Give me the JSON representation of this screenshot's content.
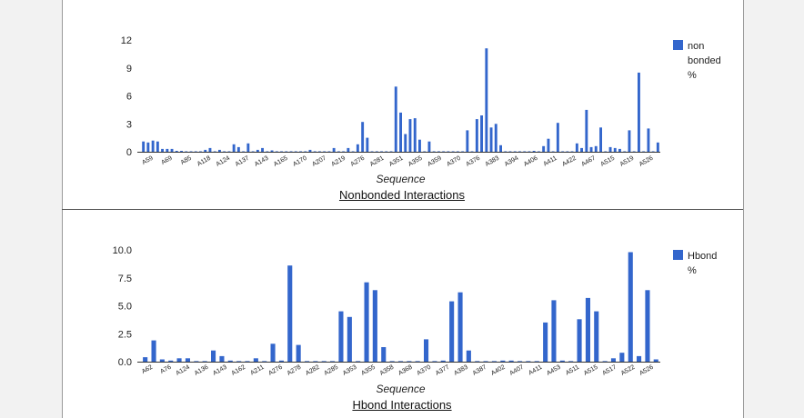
{
  "accent_color": "#3366cc",
  "charts": {
    "nonbonded": {
      "caption": "Nonbonded Interactions"
    },
    "hbond": {
      "caption": "Hbond Interactions"
    }
  },
  "chart_data": [
    {
      "type": "bar",
      "title": "Nonbonded Interactions",
      "xlabel": "Sequence",
      "ylabel": "",
      "ylim": [
        0,
        12
      ],
      "yticks": [
        "0",
        "3",
        "6",
        "9",
        "12"
      ],
      "ytick_values": [
        0,
        3,
        6,
        9,
        12
      ],
      "grid": false,
      "legend": {
        "label": [
          "non",
          "bonded",
          "%"
        ],
        "placement": "right"
      },
      "tick_labels": [
        "A59",
        "A69",
        "A85",
        "A118",
        "A124",
        "A137",
        "A143",
        "A165",
        "A170",
        "A207",
        "A219",
        "A276",
        "A281",
        "A351",
        "A355",
        "A359",
        "A370",
        "A376",
        "A383",
        "A394",
        "A406",
        "A411",
        "A422",
        "A467",
        "A515",
        "A519",
        "A526"
      ],
      "series": [
        {
          "values": [
            1.1,
            1.0,
            1.2,
            1.1,
            0.3,
            0.3,
            0.3,
            0.1,
            0.1,
            0.05,
            0.05,
            0.05,
            0.05,
            0.2,
            0.4,
            0.05,
            0.2,
            0.05,
            0.05,
            0.8,
            0.5,
            0.05,
            0.9,
            0.05,
            0.2,
            0.4,
            0.05,
            0.15,
            0.05,
            0.05,
            0.05,
            0.05,
            0.05,
            0.05,
            0.05,
            0.2,
            0.05,
            0.05,
            0.05,
            0.05,
            0.4,
            0.05,
            0.05,
            0.4,
            0.05,
            0.8,
            3.2,
            1.5,
            0.05,
            0.05,
            0.05,
            0.05,
            0.05,
            7.0,
            4.2,
            1.9,
            3.5,
            3.6,
            1.3,
            0.05,
            1.1,
            0.05,
            0.05,
            0.05,
            0.05,
            0.05,
            0.05,
            0.05,
            2.3,
            0.05,
            3.5,
            3.9,
            11.1,
            2.6,
            3.0,
            0.7,
            0.05,
            0.05,
            0.05,
            0.05,
            0.05,
            0.05,
            0.1,
            0.05,
            0.6,
            1.4,
            0.05,
            3.1,
            0.05,
            0.05,
            0.05,
            0.9,
            0.4,
            4.5,
            0.5,
            0.6,
            2.6,
            0.05,
            0.5,
            0.4,
            0.3,
            0.05,
            2.3,
            0.05,
            8.5,
            0.05,
            2.5,
            0.05,
            1.0
          ]
        }
      ]
    },
    {
      "type": "bar",
      "title": "Hbond Interactions",
      "xlabel": "Sequence",
      "ylabel": "",
      "ylim": [
        0,
        10
      ],
      "yticks": [
        "0.0",
        "2.5",
        "5.0",
        "7.5",
        "10.0"
      ],
      "ytick_values": [
        0,
        2.5,
        5,
        7.5,
        10
      ],
      "grid": false,
      "legend": {
        "label": [
          "Hbond",
          "%"
        ],
        "placement": "right"
      },
      "tick_labels": [
        "A62",
        "A76",
        "A124",
        "A136",
        "A143",
        "A162",
        "A211",
        "A276",
        "A278",
        "A282",
        "A285",
        "A353",
        "A355",
        "A358",
        "A368",
        "A370",
        "A377",
        "A383",
        "A387",
        "A402",
        "A407",
        "A411",
        "A453",
        "A511",
        "A515",
        "A517",
        "A522",
        "A526"
      ],
      "series": [
        {
          "values": [
            0.4,
            1.9,
            0.2,
            0.1,
            0.3,
            0.3,
            0.05,
            0.05,
            1.0,
            0.5,
            0.1,
            0.05,
            0.05,
            0.3,
            0.05,
            1.6,
            0.1,
            8.6,
            1.5,
            0.05,
            0.05,
            0.05,
            0.05,
            4.5,
            4.0,
            0.05,
            7.1,
            6.4,
            1.3,
            0.05,
            0.05,
            0.05,
            0.05,
            2.0,
            0.05,
            0.1,
            5.4,
            6.2,
            1.0,
            0.05,
            0.05,
            0.05,
            0.1,
            0.1,
            0.05,
            0.05,
            0.05,
            3.5,
            5.5,
            0.1,
            0.05,
            3.8,
            5.7,
            4.5,
            0.05,
            0.3,
            0.8,
            9.8,
            0.5,
            6.4,
            0.2
          ]
        }
      ]
    }
  ]
}
